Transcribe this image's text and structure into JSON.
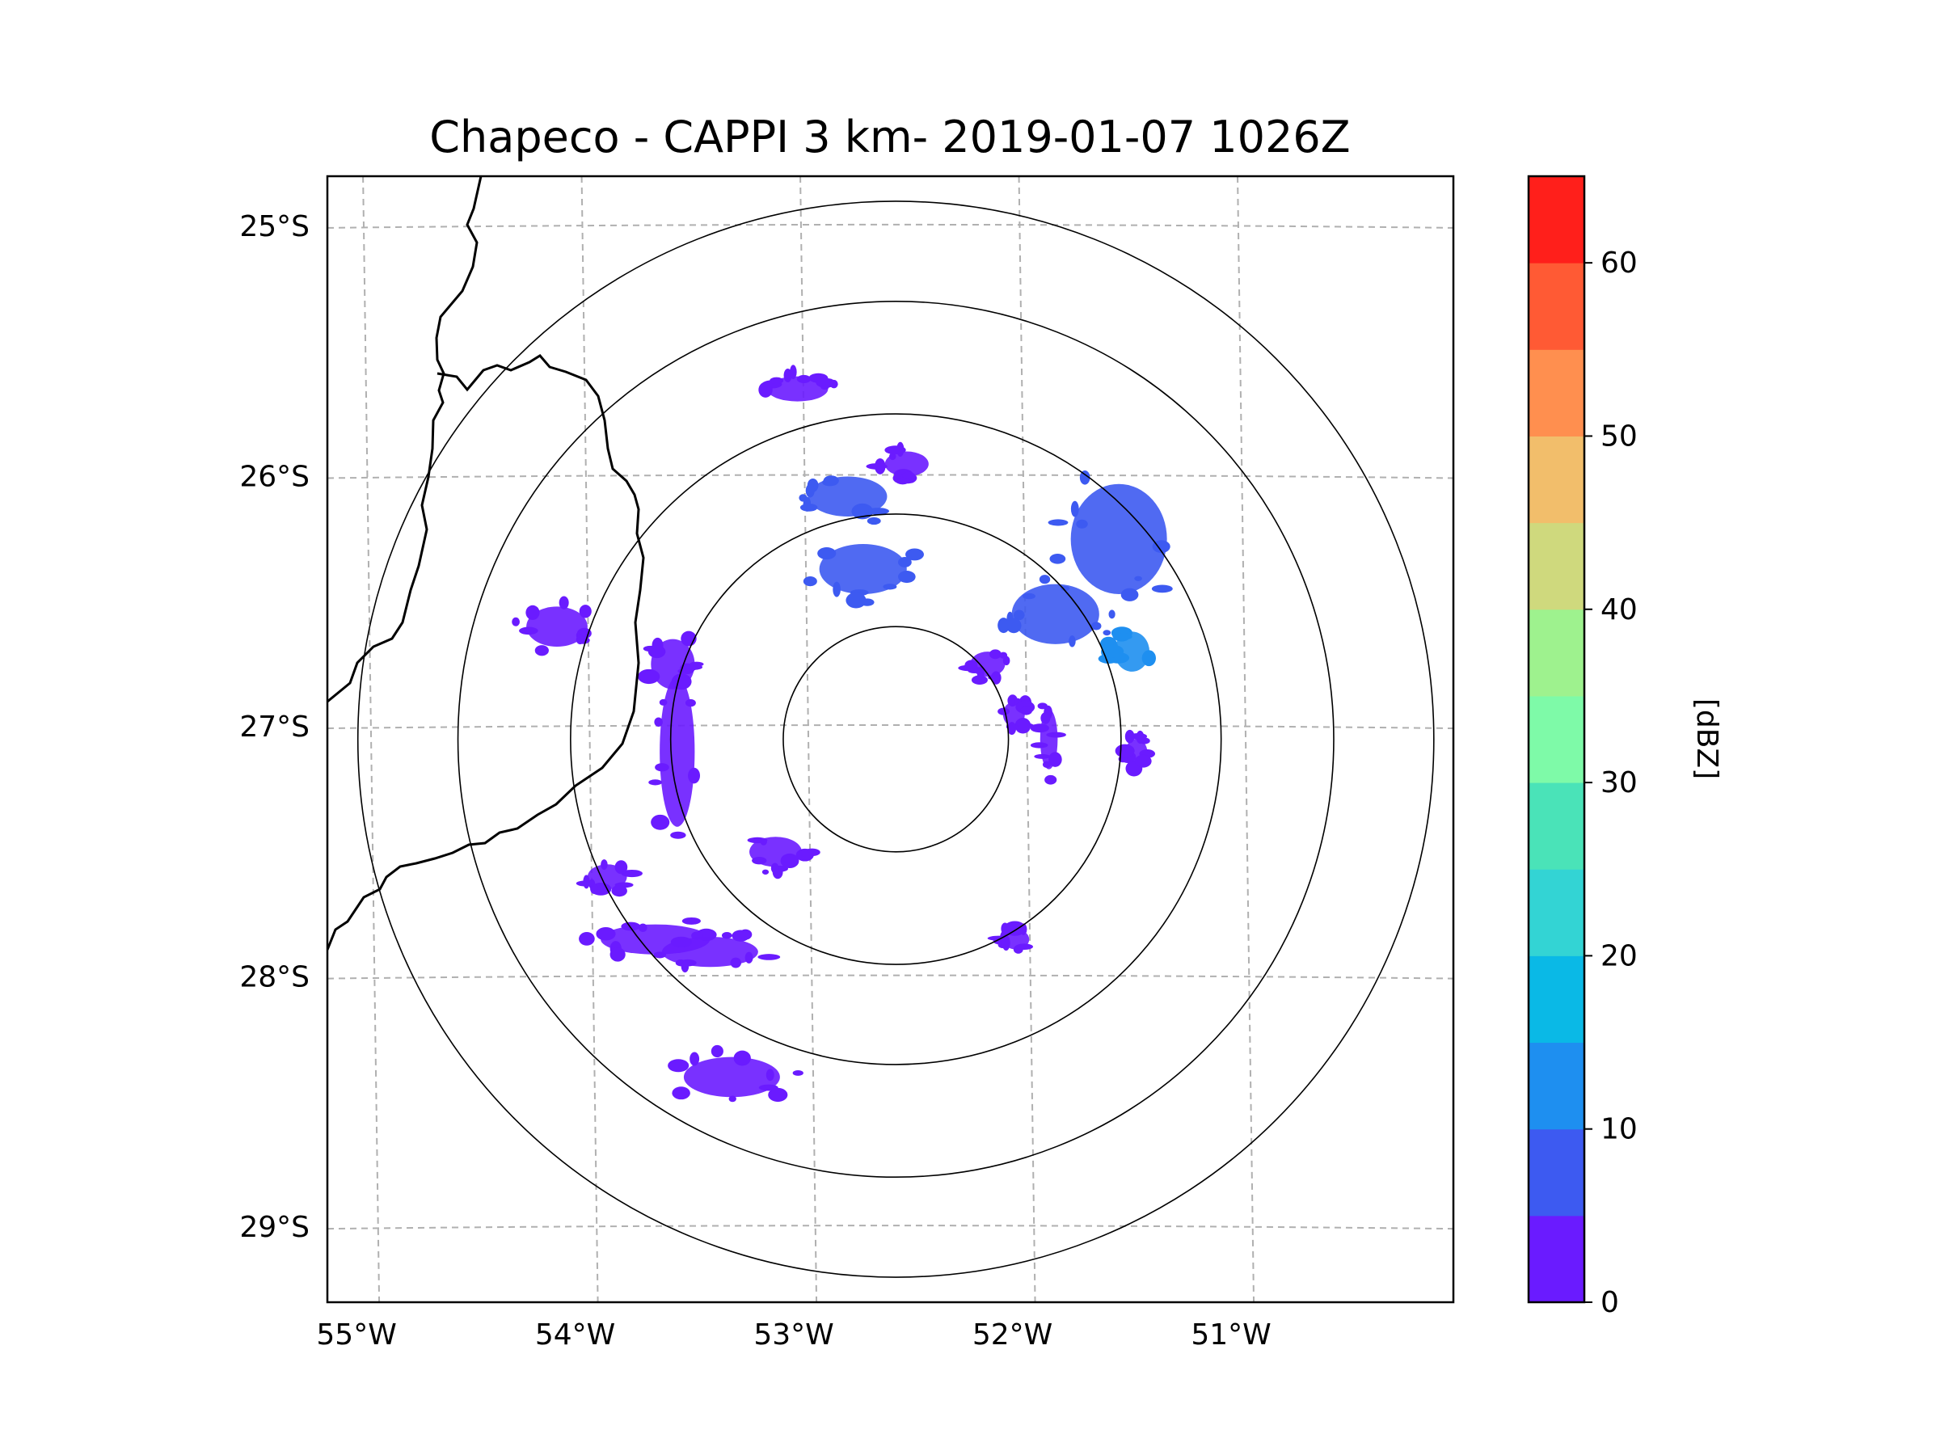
{
  "chart_data": {
    "type": "map",
    "title": "Chapeco - CAPPI 3 km- 2019-01-07 1026Z",
    "radar_center": {
      "lon": -52.6,
      "lat": -27.05
    },
    "extent": {
      "lon_min": -55.2,
      "lon_max": -50.05,
      "lat_min": -29.3,
      "lat_max": -24.8
    },
    "range_rings_deg": [
      0.45,
      0.9,
      1.3,
      1.75,
      2.15
    ],
    "lon_ticks": [
      -55,
      -54,
      -53,
      -52,
      -51
    ],
    "lon_tick_labels": [
      "55°W",
      "54°W",
      "53°W",
      "52°W",
      "51°W"
    ],
    "lat_ticks": [
      -25,
      -26,
      -27,
      -28,
      -29
    ],
    "lat_tick_labels": [
      "25°S",
      "26°S",
      "27°S",
      "28°S",
      "29°S"
    ],
    "gridlines": true,
    "colorbar": {
      "label": "[dBZ]",
      "min": 0,
      "max": 65,
      "step": 5,
      "tick_values": [
        0,
        10,
        20,
        30,
        40,
        50,
        60
      ],
      "tick_labels": [
        "0",
        "10",
        "20",
        "30",
        "40",
        "50",
        "60"
      ],
      "colors": [
        "#6a1bff",
        "#3d5af1",
        "#1e8ff0",
        "#0ab9e6",
        "#33d4d4",
        "#4ae3b8",
        "#7efaa8",
        "#9ef28e",
        "#cfd97d",
        "#f2be6b",
        "#ff8f4f",
        "#ff5a34",
        "#ff1f1b"
      ]
    },
    "echoes": [
      {
        "lon": -52.82,
        "lat": -26.08,
        "rx": 0.18,
        "ry": 0.08,
        "dbz": 7
      },
      {
        "lon": -52.75,
        "lat": -26.37,
        "rx": 0.2,
        "ry": 0.1,
        "dbz": 7
      },
      {
        "lon": -51.58,
        "lat": -26.25,
        "rx": 0.22,
        "ry": 0.22,
        "dbz": 7
      },
      {
        "lon": -51.87,
        "lat": -26.55,
        "rx": 0.2,
        "ry": 0.12,
        "dbz": 7
      },
      {
        "lon": -51.52,
        "lat": -26.7,
        "rx": 0.08,
        "ry": 0.08,
        "dbz": 12
      },
      {
        "lon": -52.18,
        "lat": -26.75,
        "rx": 0.08,
        "ry": 0.05,
        "dbz": 4
      },
      {
        "lon": -52.06,
        "lat": -26.95,
        "rx": 0.05,
        "ry": 0.05,
        "dbz": 3
      },
      {
        "lon": -53.6,
        "lat": -27.1,
        "rx": 0.08,
        "ry": 0.3,
        "dbz": 3
      },
      {
        "lon": -53.62,
        "lat": -26.75,
        "rx": 0.1,
        "ry": 0.1,
        "dbz": 3
      },
      {
        "lon": -54.15,
        "lat": -26.6,
        "rx": 0.14,
        "ry": 0.08,
        "dbz": 3
      },
      {
        "lon": -53.92,
        "lat": -27.6,
        "rx": 0.09,
        "ry": 0.05,
        "dbz": 3
      },
      {
        "lon": -53.15,
        "lat": -27.5,
        "rx": 0.12,
        "ry": 0.06,
        "dbz": 3
      },
      {
        "lon": -53.7,
        "lat": -27.85,
        "rx": 0.25,
        "ry": 0.06,
        "dbz": 3
      },
      {
        "lon": -53.45,
        "lat": -27.9,
        "rx": 0.22,
        "ry": 0.06,
        "dbz": 3
      },
      {
        "lon": -53.35,
        "lat": -28.4,
        "rx": 0.22,
        "ry": 0.08,
        "dbz": 3
      },
      {
        "lon": -51.9,
        "lat": -27.05,
        "rx": 0.04,
        "ry": 0.12,
        "dbz": 3
      },
      {
        "lon": -51.5,
        "lat": -27.1,
        "rx": 0.05,
        "ry": 0.05,
        "dbz": 4
      },
      {
        "lon": -53.05,
        "lat": -25.65,
        "rx": 0.14,
        "ry": 0.05,
        "dbz": 3
      },
      {
        "lon": -52.55,
        "lat": -25.95,
        "rx": 0.1,
        "ry": 0.05,
        "dbz": 3
      },
      {
        "lon": -52.05,
        "lat": -27.85,
        "rx": 0.06,
        "ry": 0.04,
        "dbz": 3
      }
    ]
  }
}
